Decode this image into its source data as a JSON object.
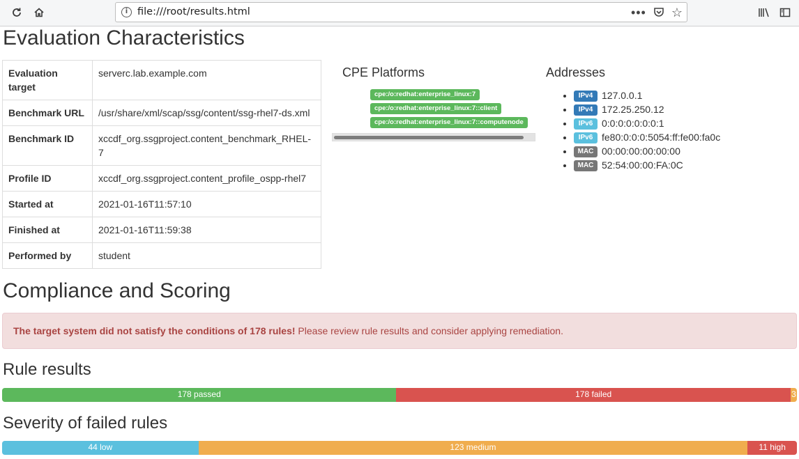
{
  "browser": {
    "url": "file:///root/results.html"
  },
  "sections": {
    "evaluation_title": "Evaluation Characteristics",
    "compliance_title": "Compliance and Scoring",
    "rule_results_title": "Rule results",
    "severity_title": "Severity of failed rules"
  },
  "characteristics": [
    {
      "key": "Evaluation target",
      "value": "serverc.lab.example.com"
    },
    {
      "key": "Benchmark URL",
      "value": "/usr/share/xml/scap/ssg/content/ssg-rhel7-ds.xml"
    },
    {
      "key": "Benchmark ID",
      "value": "xccdf_org.ssgproject.content_benchmark_RHEL-7"
    },
    {
      "key": "Profile ID",
      "value": "xccdf_org.ssgproject.content_profile_ospp-rhel7"
    },
    {
      "key": "Started at",
      "value": "2021-01-16T11:57:10"
    },
    {
      "key": "Finished at",
      "value": "2021-01-16T11:59:38"
    },
    {
      "key": "Performed by",
      "value": "student"
    }
  ],
  "cpe": {
    "title": "CPE Platforms",
    "items": [
      "cpe:/o:redhat:enterprise_linux:7",
      "cpe:/o:redhat:enterprise_linux:7::client",
      "cpe:/o:redhat:enterprise_linux:7::computenode"
    ]
  },
  "addresses": {
    "title": "Addresses",
    "items": [
      {
        "type": "IPv4",
        "value": "127.0.0.1"
      },
      {
        "type": "IPv4",
        "value": "172.25.250.12"
      },
      {
        "type": "IPv6",
        "value": "0:0:0:0:0:0:0:1"
      },
      {
        "type": "IPv6",
        "value": "fe80:0:0:0:5054:ff:fe00:fa0c"
      },
      {
        "type": "MAC",
        "value": "00:00:00:00:00:00"
      },
      {
        "type": "MAC",
        "value": "52:54:00:00:FA:0C"
      }
    ]
  },
  "alert": {
    "bold": "The target system did not satisfy the conditions of 178 rules!",
    "text": " Please review rule results and consider applying remediation."
  },
  "rule_results": [
    {
      "label": "178 passed",
      "percent": 49.6,
      "color": "#5cb85c"
    },
    {
      "label": "178 failed",
      "percent": 49.6,
      "color": "#d9534f"
    },
    {
      "label": "3",
      "percent": 0.8,
      "color": "#f0ad4e"
    }
  ],
  "severity": [
    {
      "label": "44 low",
      "percent": 24.7,
      "color": "#5bc0de"
    },
    {
      "label": "123 medium",
      "percent": 69.1,
      "color": "#f0ad4e"
    },
    {
      "label": "11 high",
      "percent": 6.2,
      "color": "#d9534f"
    }
  ]
}
